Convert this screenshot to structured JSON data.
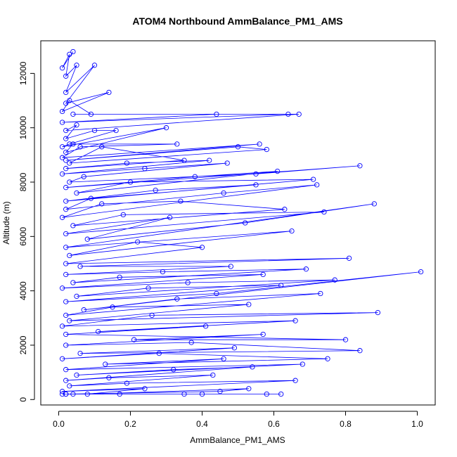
{
  "chart_data": {
    "type": "line",
    "title": "ATOM4 Northbound AmmBalance_PM1_AMS",
    "xlabel": "AmmBalance_PM1_AMS",
    "ylabel": "Altitude (m)",
    "xlim": [
      -0.05,
      1.05
    ],
    "ylim": [
      -200,
      13200
    ],
    "x_ticks": [
      0.0,
      0.2,
      0.4,
      0.6,
      0.8,
      1.0
    ],
    "x_tick_labels": [
      "0.0",
      "0.2",
      "0.4",
      "0.6",
      "0.8",
      "1.0"
    ],
    "y_ticks": [
      0,
      2000,
      4000,
      6000,
      8000,
      10000,
      12000
    ],
    "y_tick_labels": [
      "0",
      "2000",
      "4000",
      "6000",
      "8000",
      "10000",
      "12000"
    ],
    "grid": false,
    "legend": false,
    "series_color": "#0000ff",
    "series": [
      {
        "marker": "open-circle",
        "x": [
          0.04,
          0.01,
          0.03,
          0.02,
          0.05,
          0.02,
          0.1,
          0.02,
          0.14,
          0.01,
          0.03,
          0.09,
          0.04,
          0.64,
          0.01,
          0.44,
          0.67,
          0.02,
          0.05,
          0.02,
          0.1,
          0.16,
          0.03,
          0.01,
          0.3,
          0.02,
          0.04,
          0.33,
          0.06,
          0.01,
          0.56,
          0.02,
          0.5,
          0.58,
          0.03,
          0.12,
          0.35,
          0.02,
          0.19,
          0.42,
          0.01,
          0.24,
          0.47,
          0.07,
          0.03,
          0.55,
          0.84,
          0.02,
          0.38,
          0.61,
          0.05,
          0.2,
          0.71,
          0.02,
          0.27,
          0.55,
          0.09,
          0.02,
          0.46,
          0.72,
          0.01,
          0.12,
          0.34,
          0.63,
          0.04,
          0.18,
          0.74,
          0.02,
          0.31,
          0.08,
          0.52,
          0.88,
          0.02,
          0.65,
          0.03,
          0.22,
          0.4,
          0.02,
          0.81,
          0.06,
          0.48,
          0.02,
          0.29,
          0.69,
          0.04,
          0.17,
          0.57,
          0.01,
          0.36,
          0.77,
          0.05,
          0.25,
          0.62,
          0.02,
          0.44,
          1.01,
          0.07,
          0.33,
          0.73,
          0.02,
          0.15,
          0.53,
          0.03,
          0.89,
          0.26,
          0.01,
          0.66,
          0.11,
          0.41,
          0.02,
          0.8,
          0.21,
          0.57,
          0.02,
          0.37,
          0.84,
          0.06,
          0.49,
          0.01,
          0.28,
          0.75,
          0.13,
          0.46,
          0.02,
          0.68,
          0.05,
          0.32,
          0.54,
          0.02,
          0.14,
          0.43,
          0.03,
          0.19,
          0.66,
          0.01,
          0.24,
          0.08,
          0.53,
          0.45,
          0.02,
          0.35,
          0.62,
          0.04,
          0.17,
          0.58,
          0.01,
          0.4,
          0.02
        ],
        "y": [
          12800,
          12200,
          12700,
          11900,
          12300,
          11300,
          12300,
          10900,
          11300,
          10600,
          11000,
          10500,
          10500,
          10500,
          10200,
          10500,
          10500,
          9900,
          10100,
          9600,
          9900,
          9900,
          9400,
          9300,
          10000,
          9100,
          9400,
          9400,
          9300,
          8900,
          9400,
          8800,
          9300,
          9200,
          8700,
          9300,
          8800,
          8500,
          8700,
          8800,
          8300,
          8500,
          8700,
          8200,
          8000,
          8300,
          8600,
          7800,
          8200,
          8400,
          7600,
          8000,
          8100,
          7300,
          7700,
          7900,
          7400,
          7000,
          7600,
          7900,
          6700,
          7200,
          7300,
          7000,
          6400,
          6800,
          6900,
          6100,
          6700,
          5900,
          6500,
          7200,
          5600,
          6200,
          5300,
          5800,
          5600,
          5000,
          5200,
          4900,
          4900,
          4600,
          4700,
          4800,
          4300,
          4500,
          4600,
          4100,
          4300,
          4400,
          3800,
          4100,
          4200,
          3600,
          3900,
          4700,
          3300,
          3700,
          3900,
          3100,
          3400,
          3500,
          2900,
          3200,
          3100,
          2700,
          2900,
          2500,
          2700,
          2400,
          2200,
          2200,
          2400,
          2000,
          2100,
          1800,
          1700,
          1900,
          1500,
          1700,
          1500,
          1300,
          1500,
          1100,
          1300,
          900,
          1100,
          1200,
          700,
          800,
          900,
          500,
          600,
          700,
          300,
          400,
          200,
          400,
          300,
          200,
          200,
          200,
          200,
          200,
          200,
          200,
          200,
          200
        ]
      }
    ]
  }
}
